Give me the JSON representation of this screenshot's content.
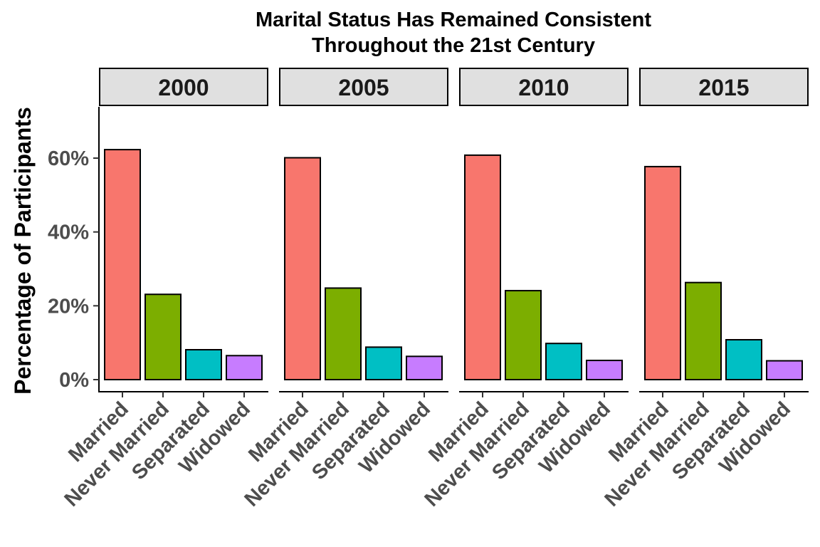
{
  "chart_data": {
    "type": "bar",
    "title": "Marital Status Has Remained Consistent\nThroughout the 21st Century",
    "title_lines": [
      "Marital Status Has Remained Consistent",
      "Throughout the 21st Century"
    ],
    "xlabel": "",
    "ylabel": "Percentage of Participants",
    "facets": [
      "2000",
      "2005",
      "2010",
      "2015"
    ],
    "categories": [
      "Married",
      "Never Married",
      "Separated",
      "Widowed"
    ],
    "category_colors": [
      "#F8766D",
      "#7CAE00",
      "#00BFC4",
      "#C77CFF"
    ],
    "ylim": [
      0,
      74
    ],
    "yticks": [
      0,
      20,
      40,
      60
    ],
    "ytick_labels": [
      "0%",
      "20%",
      "40%",
      "60%"
    ],
    "grid": false,
    "legend": "none",
    "panels": [
      {
        "facet": "2000",
        "values": [
          62.3,
          23.1,
          8.1,
          6.5
        ]
      },
      {
        "facet": "2005",
        "values": [
          60.1,
          24.8,
          8.8,
          6.3
        ]
      },
      {
        "facet": "2010",
        "values": [
          60.8,
          24.1,
          9.8,
          5.2
        ]
      },
      {
        "facet": "2015",
        "values": [
          57.7,
          26.3,
          10.8,
          5.1
        ]
      }
    ]
  }
}
